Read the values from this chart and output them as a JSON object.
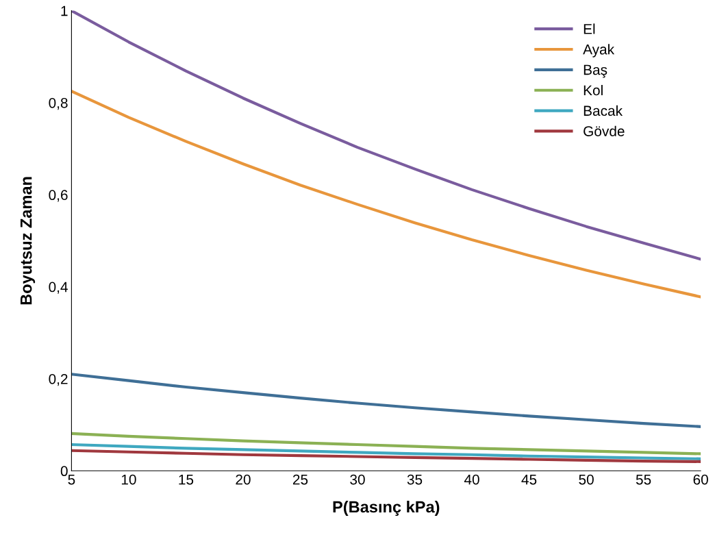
{
  "chart_data": {
    "type": "line",
    "xlabel": "P(Basınç kPa)",
    "ylabel": "Boyutsuz Zaman",
    "x": [
      5,
      10,
      15,
      20,
      25,
      30,
      35,
      40,
      45,
      50,
      55,
      60
    ],
    "series": [
      {
        "name": "El",
        "color": "#7a5c9e",
        "values": [
          1.0,
          0.932,
          0.869,
          0.81,
          0.755,
          0.703,
          0.656,
          0.611,
          0.57,
          0.531,
          0.495,
          0.46
        ]
      },
      {
        "name": "Ayak",
        "color": "#e8963c",
        "values": [
          0.825,
          0.768,
          0.716,
          0.667,
          0.621,
          0.579,
          0.539,
          0.502,
          0.468,
          0.436,
          0.406,
          0.378
        ]
      },
      {
        "name": "Baş",
        "color": "#3f6f96",
        "values": [
          0.21,
          0.196,
          0.182,
          0.17,
          0.158,
          0.147,
          0.137,
          0.128,
          0.119,
          0.111,
          0.103,
          0.096
        ]
      },
      {
        "name": "Kol",
        "color": "#8bb154",
        "values": [
          0.081,
          0.075,
          0.07,
          0.065,
          0.061,
          0.057,
          0.053,
          0.049,
          0.046,
          0.043,
          0.04,
          0.037
        ]
      },
      {
        "name": "Bacak",
        "color": "#3fa8c0",
        "values": [
          0.057,
          0.053,
          0.049,
          0.046,
          0.043,
          0.04,
          0.037,
          0.035,
          0.032,
          0.03,
          0.028,
          0.026
        ]
      },
      {
        "name": "Gövde",
        "color": "#a0383e",
        "values": [
          0.044,
          0.041,
          0.038,
          0.035,
          0.033,
          0.031,
          0.029,
          0.027,
          0.025,
          0.023,
          0.021,
          0.02
        ]
      }
    ],
    "xlim": [
      5,
      60
    ],
    "xticks": [
      5,
      10,
      15,
      20,
      25,
      30,
      35,
      40,
      45,
      50,
      55,
      60
    ],
    "ylim": [
      0,
      1
    ],
    "yticks": [
      0,
      {
        "value": 0.2,
        "label": "0,2"
      },
      {
        "value": 0.4,
        "label": "0,4"
      },
      {
        "value": 0.6,
        "label": "0,6"
      },
      {
        "value": 0.8,
        "label": "0,8"
      },
      1
    ],
    "grid": false,
    "legend": "top right",
    "marker": "none",
    "line_style": "solid"
  }
}
